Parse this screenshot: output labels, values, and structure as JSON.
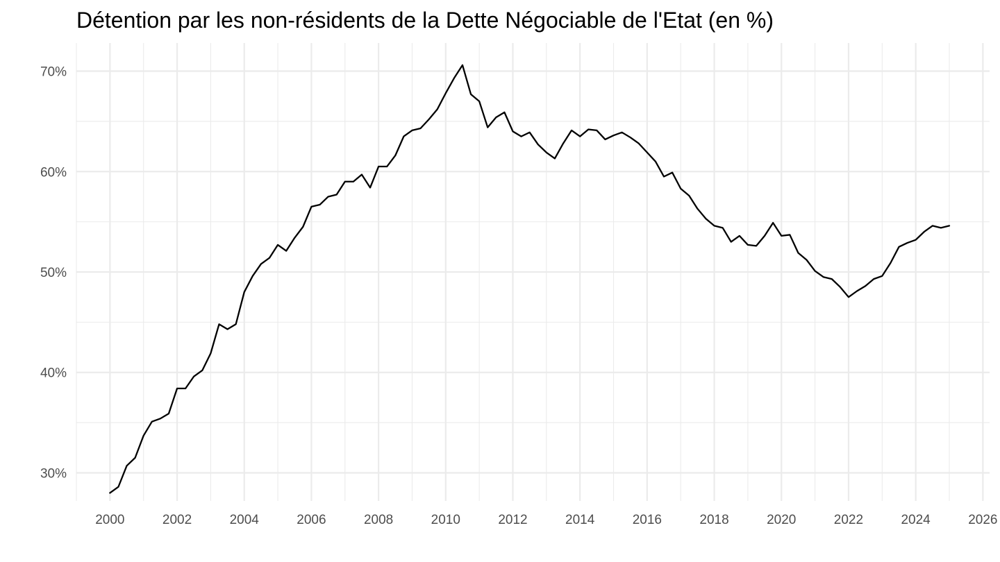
{
  "chart_data": {
    "type": "line",
    "title": "Détention par les non-résidents de la Dette Négociable de l'Etat (en %)",
    "xlabel": "",
    "ylabel": "",
    "xlim": [
      1999,
      2026.2
    ],
    "ylim": [
      27.2,
      72.8
    ],
    "x_ticks": [
      2000,
      2002,
      2004,
      2006,
      2008,
      2010,
      2012,
      2014,
      2016,
      2018,
      2020,
      2022,
      2024,
      2026
    ],
    "x_tick_labels": [
      "2000",
      "2002",
      "2004",
      "2006",
      "2008",
      "2010",
      "2012",
      "2014",
      "2016",
      "2018",
      "2020",
      "2022",
      "2024",
      "2026"
    ],
    "y_ticks": [
      30,
      40,
      50,
      60,
      70
    ],
    "y_tick_labels": [
      "30%",
      "40%",
      "50%",
      "60%",
      "70%"
    ],
    "grid": true,
    "legend": "none",
    "series_color": "#000000",
    "x": [
      2000.0,
      2000.25,
      2000.5,
      2000.75,
      2001.0,
      2001.25,
      2001.5,
      2001.75,
      2002.0,
      2002.25,
      2002.5,
      2002.75,
      2003.0,
      2003.25,
      2003.5,
      2003.75,
      2004.0,
      2004.25,
      2004.5,
      2004.75,
      2005.0,
      2005.25,
      2005.5,
      2005.75,
      2006.0,
      2006.25,
      2006.5,
      2006.75,
      2007.0,
      2007.25,
      2007.5,
      2007.75,
      2008.0,
      2008.25,
      2008.5,
      2008.75,
      2009.0,
      2009.25,
      2009.5,
      2009.75,
      2010.0,
      2010.25,
      2010.5,
      2010.75,
      2011.0,
      2011.25,
      2011.5,
      2011.75,
      2012.0,
      2012.25,
      2012.5,
      2012.75,
      2013.0,
      2013.25,
      2013.5,
      2013.75,
      2014.0,
      2014.25,
      2014.5,
      2014.75,
      2015.0,
      2015.25,
      2015.5,
      2015.75,
      2016.0,
      2016.25,
      2016.5,
      2016.75,
      2017.0,
      2017.25,
      2017.5,
      2017.75,
      2018.0,
      2018.25,
      2018.5,
      2018.75,
      2019.0,
      2019.25,
      2019.5,
      2019.75,
      2020.0,
      2020.25,
      2020.5,
      2020.75,
      2021.0,
      2021.25,
      2021.5,
      2021.75,
      2022.0,
      2022.25,
      2022.5,
      2022.75,
      2023.0,
      2023.25,
      2023.5,
      2023.75,
      2024.0,
      2024.25,
      2024.5,
      2024.75,
      2025.0
    ],
    "y": [
      28.0,
      28.6,
      30.7,
      31.5,
      33.7,
      35.1,
      35.4,
      35.9,
      38.4,
      38.4,
      39.6,
      40.2,
      41.9,
      44.8,
      44.3,
      44.8,
      48.0,
      49.6,
      50.8,
      51.4,
      52.7,
      52.1,
      53.4,
      54.5,
      56.5,
      56.7,
      57.5,
      57.7,
      59.0,
      59.0,
      59.7,
      58.4,
      60.5,
      60.5,
      61.6,
      63.5,
      64.1,
      64.3,
      65.2,
      66.2,
      67.8,
      69.3,
      70.6,
      67.7,
      67.0,
      64.4,
      65.4,
      65.9,
      64.0,
      63.5,
      63.9,
      62.7,
      61.9,
      61.3,
      62.8,
      64.1,
      63.5,
      64.2,
      64.1,
      63.2,
      63.6,
      63.9,
      63.4,
      62.8,
      61.9,
      61.0,
      59.5,
      59.9,
      58.3,
      57.6,
      56.3,
      55.3,
      54.6,
      54.4,
      53.0,
      53.6,
      52.7,
      52.6,
      53.6,
      54.9,
      53.6,
      53.7,
      51.9,
      51.2,
      50.1,
      49.5,
      49.3,
      48.5,
      47.5,
      48.1,
      48.6,
      49.3,
      49.6,
      50.9,
      52.5,
      52.9,
      53.2,
      54.0,
      54.6,
      54.4,
      54.6
    ]
  }
}
